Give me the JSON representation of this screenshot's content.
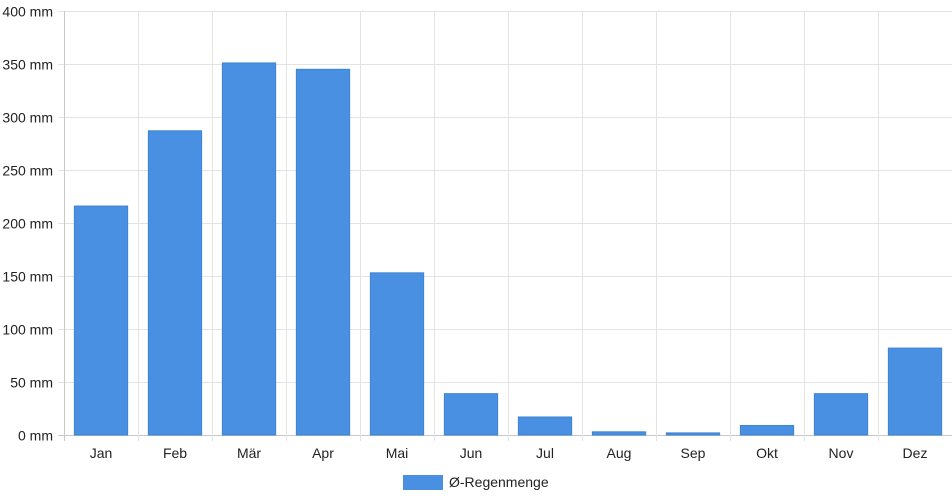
{
  "chart_data": {
    "type": "bar",
    "categories": [
      "Jan",
      "Feb",
      "Mär",
      "Apr",
      "Mai",
      "Jun",
      "Jul",
      "Aug",
      "Sep",
      "Okt",
      "Nov",
      "Dez"
    ],
    "series": [
      {
        "name": "Ø-Regenmenge",
        "color": "#4a90e2",
        "values": [
          216,
          287,
          351,
          345,
          153,
          39,
          17,
          3,
          2,
          9,
          39,
          82
        ]
      }
    ],
    "y_ticks": [
      "0 mm",
      "50 mm",
      "100 mm",
      "150 mm",
      "200 mm",
      "250 mm",
      "300 mm",
      "350 mm",
      "400 mm"
    ],
    "ylim": [
      0,
      400
    ],
    "y_unit": "mm",
    "grid": true,
    "legend_position": "bottom-center"
  }
}
